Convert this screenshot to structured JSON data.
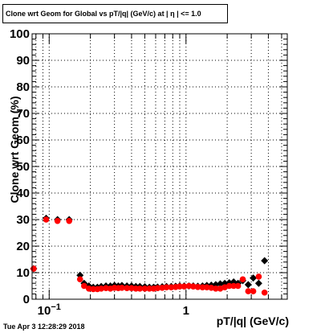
{
  "title": "Clone wrt Geom for Global vs pT/|q| (GeV/c) at |  η | <= 1.0",
  "datestamp": "Tue Apr  3 12:28:29 2018",
  "chart_data": {
    "type": "scatter",
    "title": "Clone wrt Geom for Global vs pT/|q| (GeV/c) at |  η | <= 1.0",
    "xlabel": "pT/|q| (GeV/c)",
    "ylabel": "Clone wrt Geom (%)",
    "xscale": "log",
    "xlim": [
      0.075,
      5.5
    ],
    "ylim": [
      0,
      100
    ],
    "grid": true,
    "x_tick_labels": [
      {
        "v": 0.1,
        "text": "10",
        "sup": "−1"
      },
      {
        "v": 1,
        "text": "1",
        "sup": ""
      }
    ],
    "y_tick_labels": [
      "0",
      "10",
      "20",
      "30",
      "40",
      "50",
      "60",
      "70",
      "80",
      "90",
      "100"
    ],
    "series": [
      {
        "color": "#000000",
        "marker": "diamond",
        "points": [
          [
            0.077,
            11.5
          ],
          [
            0.095,
            30.5
          ],
          [
            0.115,
            30.0
          ],
          [
            0.14,
            30.0
          ],
          [
            0.168,
            9.0
          ],
          [
            0.18,
            6.0
          ],
          [
            0.195,
            5.0
          ],
          [
            0.21,
            4.5
          ],
          [
            0.225,
            4.5
          ],
          [
            0.24,
            4.8
          ],
          [
            0.26,
            5.0
          ],
          [
            0.28,
            5.0
          ],
          [
            0.3,
            5.2
          ],
          [
            0.32,
            5.0
          ],
          [
            0.34,
            5.2
          ],
          [
            0.37,
            5.0
          ],
          [
            0.4,
            5.0
          ],
          [
            0.43,
            4.8
          ],
          [
            0.46,
            4.8
          ],
          [
            0.5,
            4.7
          ],
          [
            0.54,
            4.5
          ],
          [
            0.58,
            4.5
          ],
          [
            0.62,
            4.6
          ],
          [
            0.67,
            4.7
          ],
          [
            0.72,
            4.8
          ],
          [
            0.78,
            4.8
          ],
          [
            0.84,
            4.9
          ],
          [
            0.9,
            5.0
          ],
          [
            0.97,
            5.0
          ],
          [
            1.05,
            5.0
          ],
          [
            1.13,
            5.0
          ],
          [
            1.22,
            4.9
          ],
          [
            1.32,
            5.0
          ],
          [
            1.42,
            5.2
          ],
          [
            1.53,
            5.3
          ],
          [
            1.65,
            5.5
          ],
          [
            1.78,
            5.8
          ],
          [
            1.92,
            6.0
          ],
          [
            2.07,
            6.2
          ],
          [
            2.23,
            6.5
          ],
          [
            2.4,
            6.0
          ],
          [
            2.6,
            7.0
          ],
          [
            2.85,
            5.5
          ],
          [
            3.1,
            8.0
          ],
          [
            3.4,
            6.0
          ],
          [
            3.75,
            14.5
          ]
        ]
      },
      {
        "color": "#ff0000",
        "marker": "circle",
        "points": [
          [
            0.077,
            11.5
          ],
          [
            0.095,
            30.0
          ],
          [
            0.115,
            29.5
          ],
          [
            0.14,
            29.5
          ],
          [
            0.168,
            7.5
          ],
          [
            0.18,
            5.0
          ],
          [
            0.195,
            4.0
          ],
          [
            0.21,
            3.8
          ],
          [
            0.225,
            3.8
          ],
          [
            0.24,
            4.0
          ],
          [
            0.26,
            4.2
          ],
          [
            0.28,
            4.0
          ],
          [
            0.3,
            4.3
          ],
          [
            0.32,
            4.2
          ],
          [
            0.34,
            4.3
          ],
          [
            0.37,
            4.2
          ],
          [
            0.4,
            4.2
          ],
          [
            0.43,
            4.0
          ],
          [
            0.46,
            4.0
          ],
          [
            0.5,
            4.0
          ],
          [
            0.54,
            4.0
          ],
          [
            0.58,
            4.0
          ],
          [
            0.62,
            4.2
          ],
          [
            0.67,
            4.3
          ],
          [
            0.72,
            4.5
          ],
          [
            0.78,
            4.5
          ],
          [
            0.84,
            4.6
          ],
          [
            0.9,
            4.8
          ],
          [
            0.97,
            4.8
          ],
          [
            1.05,
            5.0
          ],
          [
            1.13,
            4.8
          ],
          [
            1.22,
            4.6
          ],
          [
            1.32,
            4.5
          ],
          [
            1.42,
            4.5
          ],
          [
            1.53,
            4.3
          ],
          [
            1.65,
            4.0
          ],
          [
            1.78,
            4.0
          ],
          [
            1.92,
            4.5
          ],
          [
            2.07,
            5.0
          ],
          [
            2.23,
            5.0
          ],
          [
            2.4,
            5.0
          ],
          [
            2.6,
            7.5
          ],
          [
            2.85,
            3.0
          ],
          [
            3.1,
            3.0
          ],
          [
            3.4,
            8.5
          ],
          [
            3.75,
            2.5
          ]
        ]
      }
    ]
  }
}
